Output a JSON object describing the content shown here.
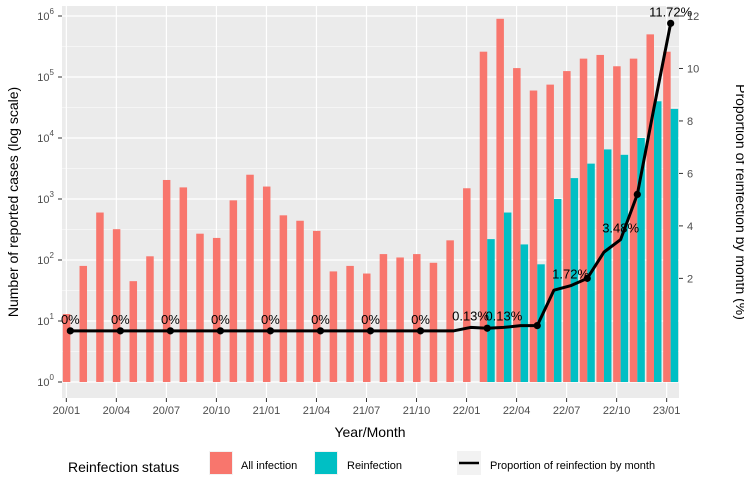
{
  "chart_data": {
    "type": "bar+line",
    "title": "",
    "xlabel": "Year/Month",
    "ylabel_left": "Number of reported cases (log scale)",
    "ylabel_right": "Proportion of reinfection by month (%)",
    "y_left_scale": "log10",
    "y_left_ticks": [
      0,
      1,
      2,
      3,
      4,
      5,
      6
    ],
    "y_left_base": "10",
    "y_right_ticks": [
      "2",
      "4",
      "6",
      "8",
      "10",
      "12"
    ],
    "y_right_range": [
      -1.95,
      12
    ],
    "x_tick_labels": [
      "20/01",
      "20/04",
      "20/07",
      "20/10",
      "21/01",
      "21/04",
      "21/07",
      "21/10",
      "22/01",
      "22/04",
      "22/07",
      "22/10",
      "23/01"
    ],
    "x_tick_indices": [
      0,
      3,
      6,
      9,
      12,
      15,
      18,
      21,
      24,
      27,
      30,
      33,
      36
    ],
    "series": [
      {
        "name": "All infection",
        "color": "#F8766D",
        "values": [
          13,
          80,
          600,
          320,
          45,
          115,
          2050,
          1550,
          270,
          230,
          950,
          2500,
          1600,
          540,
          440,
          300,
          65,
          80,
          60,
          125,
          110,
          125,
          90,
          210,
          1500,
          260000,
          900000,
          140000,
          60000,
          75000,
          125000,
          200000,
          230000,
          150000,
          200000,
          500000,
          260000
        ]
      },
      {
        "name": "Reinfection",
        "color": "#00BFC4",
        "values": [
          null,
          null,
          null,
          null,
          null,
          null,
          null,
          null,
          null,
          null,
          null,
          null,
          null,
          null,
          null,
          null,
          null,
          null,
          null,
          null,
          null,
          null,
          null,
          null,
          null,
          220,
          600,
          180,
          85,
          1000,
          2200,
          3800,
          6500,
          5300,
          10000,
          40000,
          30000
        ]
      },
      {
        "name": "Proportion of reinfection by month",
        "color": "#000000",
        "values": [
          0,
          0,
          0,
          0,
          0,
          0,
          0,
          0,
          0,
          0,
          0,
          0,
          0,
          0,
          0,
          0,
          0,
          0,
          0,
          0,
          0,
          0,
          0,
          0,
          0.13,
          0.1,
          0.13,
          0.2,
          0.2,
          1.55,
          1.72,
          2.0,
          3.0,
          3.48,
          5.2,
          8.5,
          11.72
        ]
      }
    ],
    "markers": [
      0,
      3,
      6,
      9,
      12,
      15,
      18,
      21,
      25,
      28,
      31,
      34,
      37
    ],
    "annotations": [
      {
        "month": 0,
        "text": "0%"
      },
      {
        "month": 3,
        "text": "0%"
      },
      {
        "month": 6,
        "text": "0%"
      },
      {
        "month": 9,
        "text": "0%"
      },
      {
        "month": 12,
        "text": "0%"
      },
      {
        "month": 15,
        "text": "0%"
      },
      {
        "month": 18,
        "text": "0%"
      },
      {
        "month": 21,
        "text": "0%"
      },
      {
        "month": 24,
        "text": "0.13%"
      },
      {
        "month": 26,
        "text": "0.13%"
      },
      {
        "month": 30,
        "text": "1.72%"
      },
      {
        "month": 33,
        "text": "3.48%"
      },
      {
        "month": 36,
        "text": "11.72%"
      }
    ],
    "legend": {
      "title": "Reinfection status",
      "items": [
        "All infection",
        "Reinfection",
        "Proportion of reinfection by month"
      ],
      "placement": "bottom"
    }
  }
}
